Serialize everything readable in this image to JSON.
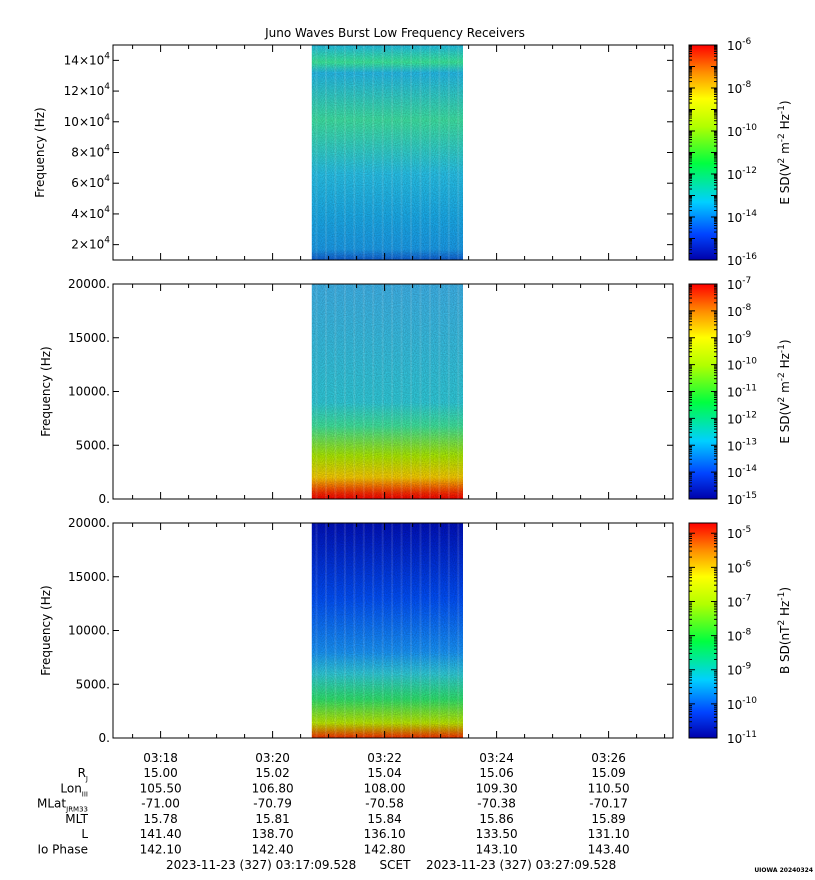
{
  "title": "Juno Waves Burst Low Frequency Receivers",
  "chart_data": [
    {
      "type": "heatmap",
      "panel": "E-field high band",
      "ylabel": "Frequency (Hz)",
      "ylim": [
        10000,
        150000
      ],
      "yticks": [
        {
          "v": 20000,
          "m": "2",
          "e": "4"
        },
        {
          "v": 40000,
          "m": "4",
          "e": "4"
        },
        {
          "v": 60000,
          "m": "6",
          "e": "4"
        },
        {
          "v": 80000,
          "m": "8",
          "e": "4"
        },
        {
          "v": 100000,
          "m": "10",
          "e": "4"
        },
        {
          "v": 120000,
          "m": "12",
          "e": "4"
        },
        {
          "v": 140000,
          "m": "14",
          "e": "4"
        }
      ],
      "data_span_time": [
        "03:20:42",
        "03:23:24"
      ],
      "colorbar": {
        "label_pre": "E SD(V",
        "label_mid": " m",
        "label_mid2": " Hz",
        "label_post": ")",
        "exps": [
          "-16",
          "-14",
          "-12",
          "-10",
          "-8",
          "-6"
        ],
        "range": [
          -16,
          -6
        ],
        "scale": "log"
      }
    },
    {
      "type": "heatmap",
      "panel": "E-field low band",
      "ylabel": "Frequency (Hz)",
      "ylim": [
        0,
        20000
      ],
      "yticks": [
        {
          "v": 0,
          "label": "0."
        },
        {
          "v": 5000,
          "label": "5000."
        },
        {
          "v": 10000,
          "label": "10000."
        },
        {
          "v": 15000,
          "label": "15000."
        },
        {
          "v": 20000,
          "label": "20000."
        }
      ],
      "data_span_time": [
        "03:20:42",
        "03:23:24"
      ],
      "colorbar": {
        "label_pre": "E SD(V",
        "label_mid": " m",
        "label_mid2": " Hz",
        "label_post": ")",
        "exps": [
          "-15",
          "-14",
          "-13",
          "-12",
          "-11",
          "-10",
          "-9",
          "-8",
          "-7"
        ],
        "range": [
          -15,
          -7
        ],
        "scale": "log"
      }
    },
    {
      "type": "heatmap",
      "panel": "B-field",
      "ylabel": "Frequency (Hz)",
      "ylim": [
        0,
        20000
      ],
      "yticks": [
        {
          "v": 0,
          "label": "0."
        },
        {
          "v": 5000,
          "label": "5000."
        },
        {
          "v": 10000,
          "label": "10000."
        },
        {
          "v": 15000,
          "label": "15000."
        },
        {
          "v": 20000,
          "label": "20000."
        }
      ],
      "data_span_time": [
        "03:20:42",
        "03:23:24"
      ],
      "colorbar": {
        "label_pre": "B SD(nT",
        "label_mid": " Hz",
        "label_mid2": "",
        "label_post": ")",
        "exps": [
          "-11",
          "-10",
          "-9",
          "-8",
          "-7",
          "-6",
          "-5"
        ],
        "range": [
          -11,
          -4.7
        ],
        "scale": "log"
      }
    }
  ],
  "xaxis": {
    "start": "03:17:09",
    "end": "03:27:09",
    "ticks": [
      "03:18",
      "03:20",
      "03:22",
      "03:24",
      "03:26"
    ]
  },
  "ephemeris": {
    "rows": [
      {
        "label": "R",
        "sub": "J",
        "values": [
          "15.00",
          "15.02",
          "15.04",
          "15.06",
          "15.09"
        ]
      },
      {
        "label": "Lon",
        "sub": "III",
        "values": [
          "105.50",
          "106.80",
          "108.00",
          "109.30",
          "110.50"
        ]
      },
      {
        "label": "MLat",
        "sub": "JRM33",
        "values": [
          "-71.00",
          "-70.79",
          "-70.58",
          "-70.38",
          "-70.17"
        ]
      },
      {
        "label": "MLT",
        "sub": "",
        "values": [
          "15.78",
          "15.81",
          "15.84",
          "15.86",
          "15.89"
        ]
      },
      {
        "label": "L",
        "sub": "",
        "values": [
          "141.40",
          "138.70",
          "136.10",
          "133.50",
          "131.10"
        ]
      },
      {
        "label": "Io Phase",
        "sub": "",
        "values": [
          "142.10",
          "142.40",
          "142.80",
          "143.10",
          "143.40"
        ]
      }
    ]
  },
  "footer": {
    "start": "2023-11-23 (327) 03:17:09.528",
    "scet": "SCET",
    "end": "2023-11-23 (327) 03:27:09.528",
    "credit": "UIOWA 20240324"
  }
}
